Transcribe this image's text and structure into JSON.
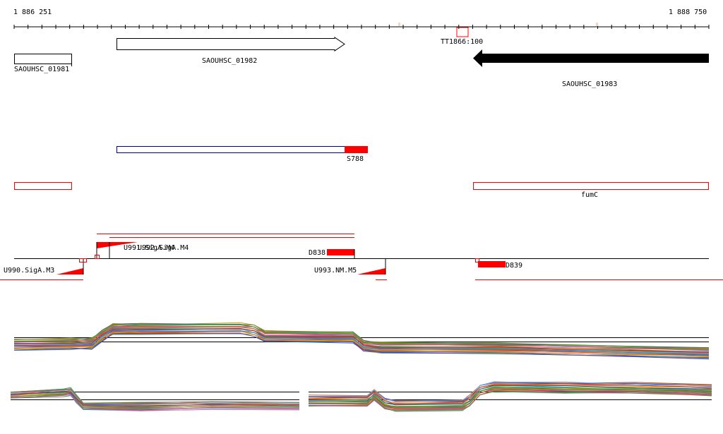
{
  "ruler": {
    "start_label": "1 886 251",
    "end_label": "1 888 750"
  },
  "genes": [
    {
      "label": "SAOUHSC_01981"
    },
    {
      "label": "SAOUHSC_01982"
    },
    {
      "label": "SAOUHSC_01983"
    }
  ],
  "terminator": {
    "label": "TT1866:100"
  },
  "features": {
    "s788": "S788",
    "fumc": "fumC",
    "d838": "D838",
    "d839": "D839",
    "u990": "U990.SigA.M3",
    "u991": "U991.SigA.M4",
    "u992": "U992.SigA.M4",
    "u993": "U993.NM.M5"
  },
  "colors": {
    "feature_red": "#ff0000",
    "outline_blue": "#000080",
    "black": "#000000"
  }
}
